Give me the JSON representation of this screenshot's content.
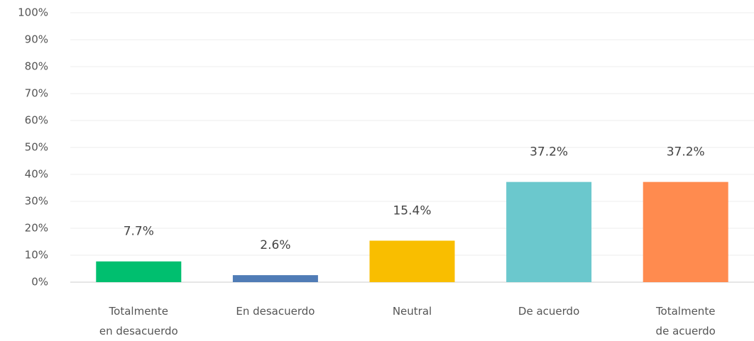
{
  "chart_data": {
    "type": "bar",
    "categories": [
      "Totalmente en desacuerdo",
      "En desacuerdo",
      "Neutral",
      "De acuerdo",
      "Totalmente de acuerdo"
    ],
    "values": [
      7.7,
      2.6,
      15.4,
      37.2,
      37.2
    ],
    "value_labels": [
      "7.7%",
      "2.6%",
      "15.4%",
      "37.2%",
      "37.2%"
    ],
    "colors": [
      "#00bf6f",
      "#507cb6",
      "#f9be00",
      "#6bc8cd",
      "#ff8b4f"
    ],
    "ylim": [
      0,
      100
    ],
    "yticks": [
      {
        "value": 0,
        "label": "0%"
      },
      {
        "value": 10,
        "label": "10%"
      },
      {
        "value": 20,
        "label": "20%"
      },
      {
        "value": 30,
        "label": "30%"
      },
      {
        "value": 40,
        "label": "40%"
      },
      {
        "value": 50,
        "label": "50%"
      },
      {
        "value": 60,
        "label": "60%"
      },
      {
        "value": 70,
        "label": "70%"
      },
      {
        "value": 80,
        "label": "80%"
      },
      {
        "value": 90,
        "label": "90%"
      },
      {
        "value": 100,
        "label": "100%"
      }
    ],
    "grid": true
  }
}
